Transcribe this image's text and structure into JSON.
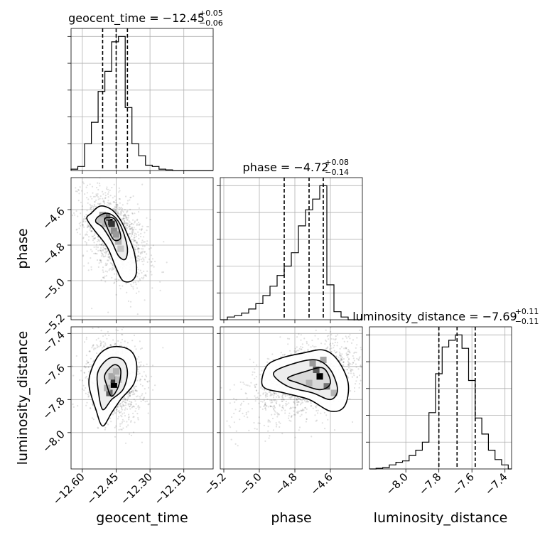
{
  "chart_data": {
    "type": "corner",
    "grid": true,
    "parameters": [
      {
        "name": "geocent_time",
        "median": -12.45,
        "plus": 0.05,
        "minus": 0.06,
        "title_text": "geocent_time = −12.45",
        "title_plus": "+0.05",
        "title_minus": "−0.06",
        "quantiles": [
          -12.51,
          -12.45,
          -12.4
        ],
        "range": [
          -12.65,
          -12.02
        ],
        "ticks": [
          -12.6,
          -12.45,
          -12.3,
          -12.15
        ],
        "tick_labels": [
          "−12.60",
          "−12.45",
          "−12.30",
          "−12.15"
        ],
        "hist_x": [
          -12.65,
          -12.62,
          -12.59,
          -12.56,
          -12.53,
          -12.5,
          -12.47,
          -12.44,
          -12.41,
          -12.38,
          -12.35,
          -12.32,
          -12.29,
          -12.26,
          -12.23,
          -12.2,
          -12.17,
          -12.14,
          -12.11,
          -12.08,
          -12.05,
          -12.02
        ],
        "hist_counts": [
          0.01,
          0.03,
          0.2,
          0.36,
          0.59,
          0.74,
          0.96,
          1.0,
          0.47,
          0.2,
          0.11,
          0.04,
          0.03,
          0.01,
          0.005,
          0.0,
          0.0,
          0.0,
          0.0,
          0.0,
          0.0
        ]
      },
      {
        "name": "phase",
        "median": -4.72,
        "plus": 0.08,
        "minus": 0.14,
        "title_text": "phase = −4.72",
        "title_plus": "+0.08",
        "title_minus": "−0.14",
        "quantiles": [
          -4.86,
          -4.72,
          -4.64
        ],
        "range": [
          -5.22,
          -4.42
        ],
        "ticks": [
          -5.2,
          -5.0,
          -4.8,
          -4.6
        ],
        "tick_labels": [
          "−5.2",
          "−5.0",
          "−4.8",
          "−4.6"
        ],
        "hist_x": [
          -5.22,
          -5.18,
          -5.14,
          -5.1,
          -5.06,
          -5.02,
          -4.98,
          -4.94,
          -4.9,
          -4.86,
          -4.82,
          -4.78,
          -4.74,
          -4.7,
          -4.66,
          -4.62,
          -4.58,
          -4.54,
          -4.5,
          -4.46,
          -4.42
        ],
        "hist_counts": [
          0.0,
          0.02,
          0.03,
          0.05,
          0.08,
          0.12,
          0.18,
          0.25,
          0.33,
          0.4,
          0.5,
          0.7,
          0.82,
          0.9,
          1.0,
          0.26,
          0.06,
          0.02,
          0.0,
          0.0
        ]
      },
      {
        "name": "luminosity_distance",
        "median": -7.69,
        "plus": 0.11,
        "minus": 0.11,
        "title_text": "luminosity_distance = −7.69",
        "title_plus": "+0.11",
        "title_minus": "−0.11",
        "quantiles": [
          -7.8,
          -7.69,
          -7.58
        ],
        "range": [
          -8.22,
          -7.36
        ],
        "ticks": [
          -8.0,
          -7.8,
          -7.6,
          -7.4
        ],
        "tick_labels": [
          "−8.0",
          "−7.8",
          "−7.6",
          "−7.4"
        ],
        "hist_x": [
          -8.22,
          -8.18,
          -8.14,
          -8.1,
          -8.06,
          -8.02,
          -7.98,
          -7.94,
          -7.9,
          -7.86,
          -7.82,
          -7.78,
          -7.74,
          -7.7,
          -7.66,
          -7.62,
          -7.58,
          -7.54,
          -7.5,
          -7.46,
          -7.42,
          -7.38,
          -7.36
        ],
        "hist_counts": [
          0.0,
          0.005,
          0.01,
          0.03,
          0.05,
          0.06,
          0.1,
          0.14,
          0.2,
          0.42,
          0.71,
          0.91,
          0.96,
          1.0,
          0.9,
          0.66,
          0.38,
          0.26,
          0.14,
          0.07,
          0.03,
          0.0
        ]
      }
    ],
    "pairs": [
      {
        "x": "geocent_time",
        "y": "phase",
        "contours": [
          [
            [
              -12.56,
              -4.62
            ],
            [
              -12.52,
              -4.58
            ],
            [
              -12.47,
              -4.6
            ],
            [
              -12.43,
              -4.66
            ],
            [
              -12.4,
              -4.74
            ],
            [
              -12.37,
              -4.84
            ],
            [
              -12.36,
              -4.95
            ],
            [
              -12.38,
              -5.0
            ],
            [
              -12.42,
              -5.0
            ],
            [
              -12.45,
              -4.93
            ],
            [
              -12.49,
              -4.81
            ],
            [
              -12.55,
              -4.71
            ],
            [
              -12.58,
              -4.65
            ]
          ],
          [
            [
              -12.53,
              -4.64
            ],
            [
              -12.49,
              -4.62
            ],
            [
              -12.45,
              -4.65
            ],
            [
              -12.42,
              -4.72
            ],
            [
              -12.4,
              -4.82
            ],
            [
              -12.41,
              -4.88
            ],
            [
              -12.44,
              -4.86
            ],
            [
              -12.47,
              -4.78
            ],
            [
              -12.51,
              -4.7
            ],
            [
              -12.54,
              -4.67
            ]
          ],
          [
            [
              -12.5,
              -4.65
            ],
            [
              -12.46,
              -4.65
            ],
            [
              -12.44,
              -4.7
            ],
            [
              -12.43,
              -4.76
            ],
            [
              -12.46,
              -4.77
            ],
            [
              -12.49,
              -4.7
            ]
          ]
        ],
        "density_cells": [
          [
            -12.48,
            -4.67,
            1.0
          ],
          [
            -12.47,
            -4.68,
            0.8
          ],
          [
            -12.49,
            -4.64,
            0.55
          ],
          [
            -12.46,
            -4.72,
            0.45
          ],
          [
            -12.51,
            -4.63,
            0.35
          ],
          [
            -12.44,
            -4.78,
            0.3
          ],
          [
            -12.45,
            -4.74,
            0.4
          ],
          [
            -12.5,
            -4.68,
            0.3
          ],
          [
            -12.43,
            -4.82,
            0.22
          ],
          [
            -12.52,
            -4.66,
            0.25
          ]
        ],
        "scatter_center": [
          -12.45,
          -4.76
        ],
        "scatter_spread": [
          0.07,
          0.13
        ]
      },
      {
        "x": "geocent_time",
        "y": "luminosity_distance",
        "contours": [
          [
            [
              -12.56,
              -7.62
            ],
            [
              -12.52,
              -7.52
            ],
            [
              -12.46,
              -7.48
            ],
            [
              -12.39,
              -7.5
            ],
            [
              -12.36,
              -7.58
            ],
            [
              -12.37,
              -7.7
            ],
            [
              -12.43,
              -7.8
            ],
            [
              -12.47,
              -7.88
            ],
            [
              -12.51,
              -7.96
            ],
            [
              -12.54,
              -7.86
            ],
            [
              -12.57,
              -7.72
            ]
          ],
          [
            [
              -12.53,
              -7.63
            ],
            [
              -12.48,
              -7.55
            ],
            [
              -12.42,
              -7.56
            ],
            [
              -12.4,
              -7.64
            ],
            [
              -12.42,
              -7.74
            ],
            [
              -12.47,
              -7.8
            ],
            [
              -12.51,
              -7.86
            ],
            [
              -12.53,
              -7.74
            ]
          ],
          [
            [
              -12.5,
              -7.65
            ],
            [
              -12.46,
              -7.59
            ],
            [
              -12.43,
              -7.62
            ],
            [
              -12.44,
              -7.72
            ],
            [
              -12.47,
              -7.78
            ],
            [
              -12.49,
              -7.72
            ]
          ]
        ],
        "density_cells": [
          [
            -12.46,
            -7.71,
            1.0
          ],
          [
            -12.46,
            -7.68,
            0.8
          ],
          [
            -12.48,
            -7.76,
            0.6
          ],
          [
            -12.47,
            -7.66,
            0.35
          ],
          [
            -12.45,
            -7.63,
            0.3
          ],
          [
            -12.49,
            -7.73,
            0.3
          ],
          [
            -12.44,
            -7.68,
            0.25
          ]
        ],
        "scatter_center": [
          -12.46,
          -7.68
        ],
        "scatter_spread": [
          0.06,
          0.12
        ]
      },
      {
        "x": "phase",
        "y": "luminosity_distance",
        "contours": [
          [
            [
              -4.96,
              -7.6
            ],
            [
              -4.88,
              -7.55
            ],
            [
              -4.76,
              -7.52
            ],
            [
              -4.64,
              -7.5
            ],
            [
              -4.56,
              -7.56
            ],
            [
              -4.5,
              -7.7
            ],
            [
              -4.52,
              -7.84
            ],
            [
              -4.6,
              -7.87
            ],
            [
              -4.72,
              -7.8
            ],
            [
              -4.86,
              -7.76
            ],
            [
              -4.98,
              -7.72
            ]
          ],
          [
            [
              -4.92,
              -7.64
            ],
            [
              -4.8,
              -7.58
            ],
            [
              -4.68,
              -7.56
            ],
            [
              -4.6,
              -7.62
            ],
            [
              -4.56,
              -7.74
            ],
            [
              -4.6,
              -7.8
            ],
            [
              -4.7,
              -7.76
            ],
            [
              -4.84,
              -7.72
            ]
          ],
          [
            [
              -4.84,
              -7.67
            ],
            [
              -4.74,
              -7.63
            ],
            [
              -4.64,
              -7.61
            ],
            [
              -4.6,
              -7.7
            ],
            [
              -4.66,
              -7.74
            ],
            [
              -4.78,
              -7.7
            ]
          ]
        ],
        "density_cells": [
          [
            -4.66,
            -7.66,
            1.0
          ],
          [
            -4.68,
            -7.62,
            0.65
          ],
          [
            -4.62,
            -7.72,
            0.55
          ],
          [
            -4.7,
            -7.58,
            0.4
          ],
          [
            -4.64,
            -7.56,
            0.35
          ],
          [
            -4.72,
            -7.7,
            0.3
          ],
          [
            -4.58,
            -7.76,
            0.3
          ]
        ],
        "scatter_center": [
          -4.74,
          -7.68
        ],
        "scatter_spread": [
          0.16,
          0.12
        ]
      }
    ]
  }
}
